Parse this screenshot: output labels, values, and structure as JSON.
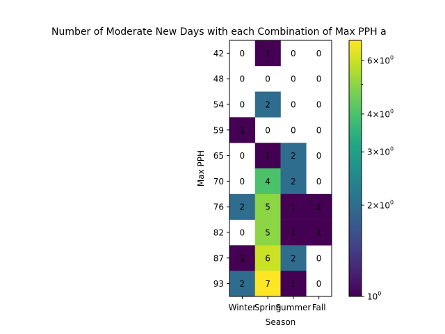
{
  "chart_data": {
    "type": "heatmap",
    "title": "Number of Moderate New Days with each Combination of Max PPH a",
    "xlabel": "Season",
    "ylabel": "Max PPH",
    "x_categories": [
      "Winter",
      "Spring",
      "Summer",
      "Fall"
    ],
    "y_categories": [
      "42",
      "48",
      "54",
      "59",
      "65",
      "70",
      "76",
      "82",
      "87",
      "93"
    ],
    "values": [
      [
        0,
        1,
        0,
        0
      ],
      [
        0,
        0,
        0,
        0
      ],
      [
        0,
        2,
        0,
        0
      ],
      [
        1,
        0,
        0,
        0
      ],
      [
        0,
        1,
        2,
        0
      ],
      [
        0,
        4,
        2,
        0
      ],
      [
        2,
        5,
        1,
        1
      ],
      [
        0,
        5,
        1,
        1
      ],
      [
        1,
        6,
        2,
        0
      ],
      [
        2,
        7,
        1,
        0
      ]
    ],
    "colormap": "viridis",
    "color_scale": "log",
    "color_range": [
      1,
      7
    ],
    "zero_cells": "blank",
    "colorbar": {
      "ticks": [
        {
          "value": 1,
          "base": "10",
          "exp": "0"
        },
        {
          "value": 2,
          "base": "2×10",
          "exp": "0"
        },
        {
          "value": 3,
          "base": "3×10",
          "exp": "0"
        },
        {
          "value": 4,
          "base": "4×10",
          "exp": "0"
        },
        {
          "value": 6,
          "base": "6×10",
          "exp": "0"
        }
      ],
      "minor_ticks": [
        5
      ]
    }
  }
}
